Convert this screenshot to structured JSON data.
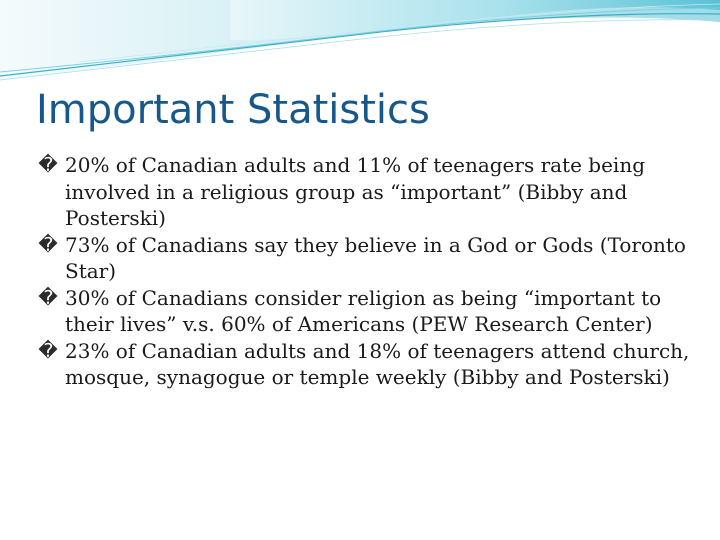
{
  "slide": {
    "title": "Important Statistics",
    "bullet_glyph": "�",
    "bullets": [
      {
        "text": "20% of Canadian adults and 11% of teenagers rate being involved in a religious group as “important” (Bibby and Posterski)"
      },
      {
        "text": "73% of Canadians say they believe in a God or Gods (Toronto Star)"
      },
      {
        "text": "30% of Canadians consider religion as being “important to their lives” v.s. 60% of Americans (PEW Research Center)"
      },
      {
        "text": "23% of Canadian adults and 18% of teenagers attend church, mosque, synagogue or temple weekly (Bibby and Posterski)"
      }
    ]
  },
  "colors": {
    "title": "#17588c",
    "body_text": "#1a1a1a",
    "wave_light": "#d7f0f5",
    "wave_mid": "#7fd0df",
    "wave_dark": "#3aaec7"
  }
}
